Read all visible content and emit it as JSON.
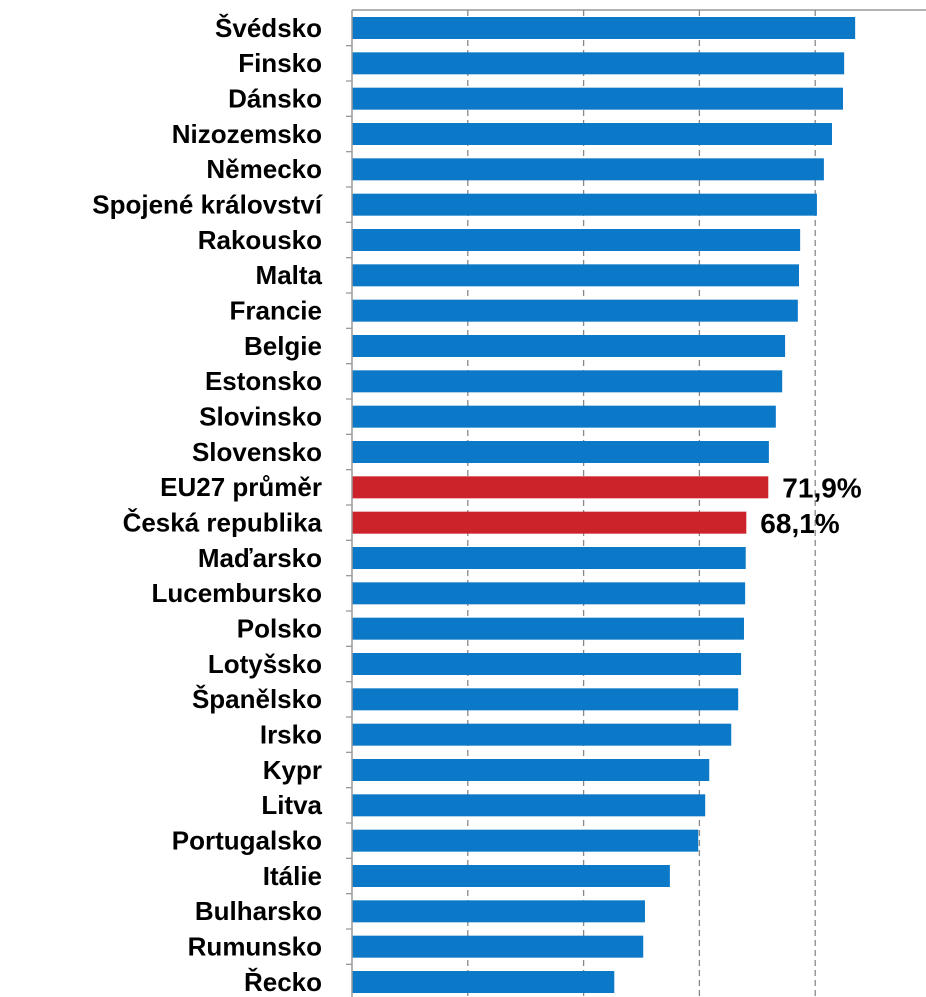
{
  "chart_data": {
    "type": "hbar",
    "categories": [
      "Švédsko",
      "Finsko",
      "Dánsko",
      "Nizozemsko",
      "Německo",
      "Spojené království",
      "Rakousko",
      "Malta",
      "Francie",
      "Belgie",
      "Estonsko",
      "Slovinsko",
      "Slovensko",
      "EU27 průměr",
      "Česká republika",
      "Maďarsko",
      "Lucembursko",
      "Polsko",
      "Lotyšsko",
      "Španělsko",
      "Irsko",
      "Kypr",
      "Litva",
      "Portugalsko",
      "Itálie",
      "Bulharsko",
      "Rumunsko",
      "Řecko"
    ],
    "values": [
      86.9,
      85.0,
      84.8,
      82.9,
      81.5,
      80.3,
      77.4,
      77.2,
      77.0,
      74.8,
      74.3,
      73.2,
      72.0,
      71.9,
      68.1,
      68.0,
      67.9,
      67.7,
      67.2,
      66.7,
      65.5,
      61.7,
      61.0,
      59.8,
      54.9,
      50.6,
      50.3,
      45.3
    ],
    "value_labels": [
      null,
      null,
      null,
      null,
      null,
      null,
      null,
      null,
      null,
      null,
      null,
      null,
      null,
      "71,9%",
      "68,1%",
      null,
      null,
      null,
      null,
      null,
      null,
      null,
      null,
      null,
      null,
      null,
      null,
      null
    ],
    "colors": [
      "#0b78c8",
      "#0b78c8",
      "#0b78c8",
      "#0b78c8",
      "#0b78c8",
      "#0b78c8",
      "#0b78c8",
      "#0b78c8",
      "#0b78c8",
      "#0b78c8",
      "#0b78c8",
      "#0b78c8",
      "#0b78c8",
      "#cc2229",
      "#cc2229",
      "#0b78c8",
      "#0b78c8",
      "#0b78c8",
      "#0b78c8",
      "#0b78c8",
      "#0b78c8",
      "#0b78c8",
      "#0b78c8",
      "#0b78c8",
      "#0b78c8",
      "#0b78c8",
      "#0b78c8",
      "#0b78c8"
    ],
    "xlim": [
      0,
      100
    ],
    "xticks": [
      20,
      40,
      60,
      80
    ],
    "grid": true
  }
}
